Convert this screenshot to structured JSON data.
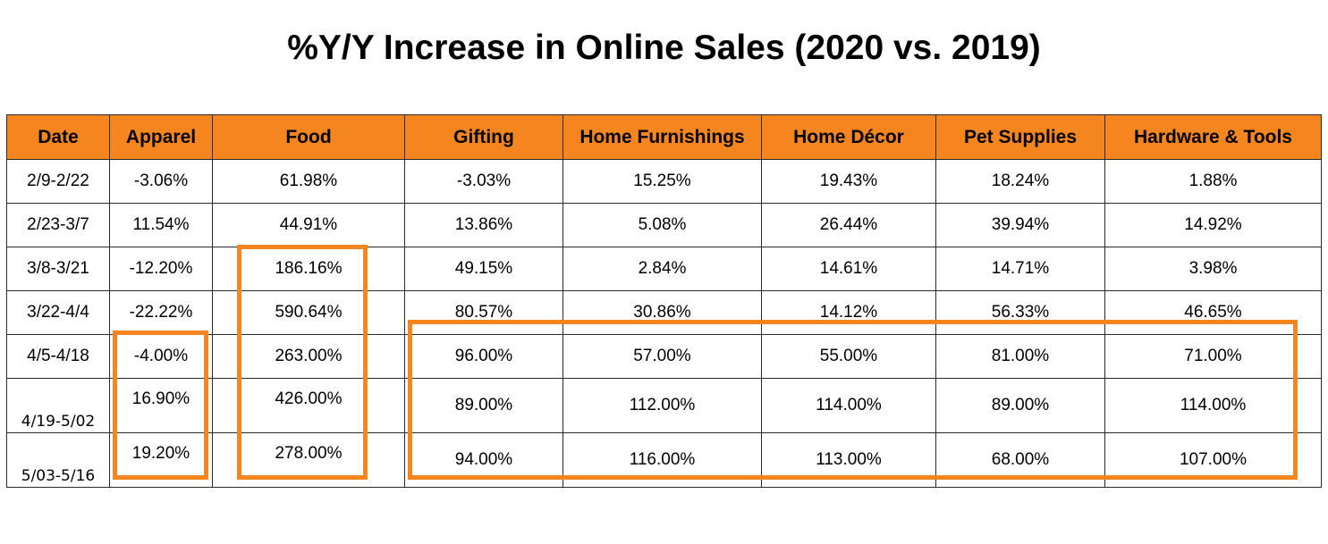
{
  "title": "%Y/Y Increase in Online Sales (2020 vs. 2019)",
  "table": {
    "headers": [
      "Date",
      "Apparel",
      "Food",
      "Gifting",
      "Home Furnishings",
      "Home Décor",
      "Pet Supplies",
      "Hardware & Tools"
    ],
    "rows": [
      [
        "2/9-2/22",
        "-3.06%",
        "61.98%",
        "-3.03%",
        "15.25%",
        "19.43%",
        "18.24%",
        "1.88%"
      ],
      [
        "2/23-3/7",
        "11.54%",
        "44.91%",
        "13.86%",
        "5.08%",
        "26.44%",
        "39.94%",
        "14.92%"
      ],
      [
        "3/8-3/21",
        "-12.20%",
        "186.16%",
        "49.15%",
        "2.84%",
        "14.61%",
        "14.71%",
        "3.98%"
      ],
      [
        "3/22-4/4",
        "-22.22%",
        "590.64%",
        "80.57%",
        "30.86%",
        "14.12%",
        "56.33%",
        "46.65%"
      ],
      [
        "4/5-4/18",
        "-4.00%",
        "263.00%",
        "96.00%",
        "57.00%",
        "55.00%",
        "81.00%",
        "71.00%"
      ],
      [
        "4/19-5/02",
        "16.90%",
        "426.00%",
        "89.00%",
        "112.00%",
        "114.00%",
        "89.00%",
        "114.00%"
      ],
      [
        "5/03-5/16",
        "19.20%",
        "278.00%",
        "94.00%",
        "116.00%",
        "113.00%",
        "68.00%",
        "107.00%"
      ]
    ]
  },
  "colors": {
    "header_fill": "#f5861f",
    "highlight_outline": "#f5861f"
  }
}
